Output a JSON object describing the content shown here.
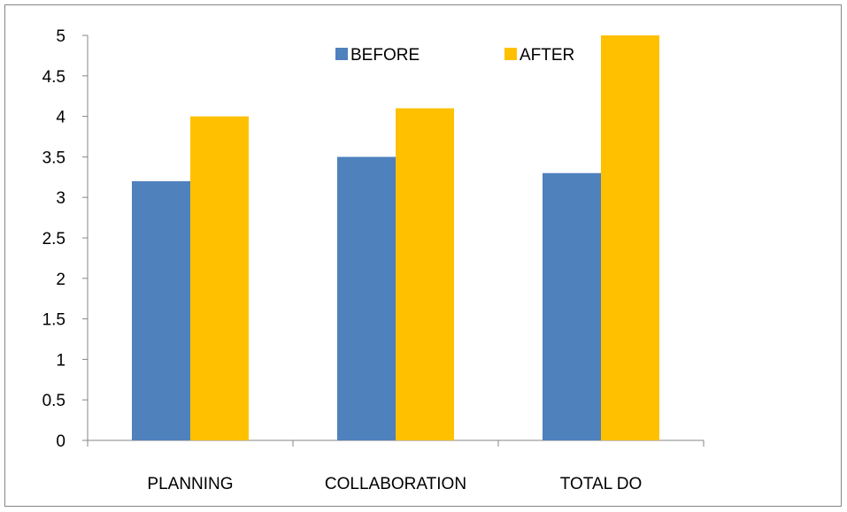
{
  "chart_data": {
    "type": "bar",
    "categories": [
      "PLANNING",
      "COLLABORATION",
      "TOTAL DO"
    ],
    "series": [
      {
        "name": "BEFORE",
        "values": [
          3.2,
          3.5,
          3.3
        ],
        "color": "#4f81bd"
      },
      {
        "name": "AFTER",
        "values": [
          4.0,
          4.1,
          5.0
        ],
        "color": "#ffc000"
      }
    ],
    "title": "",
    "xlabel": "",
    "ylabel": "",
    "ylim": [
      0,
      5
    ],
    "yticks": [
      "0",
      "0.5",
      "1",
      "1.5",
      "2",
      "2.5",
      "3",
      "3.5",
      "4",
      "4.5",
      "5"
    ],
    "grid": false,
    "legend": "top-center"
  }
}
